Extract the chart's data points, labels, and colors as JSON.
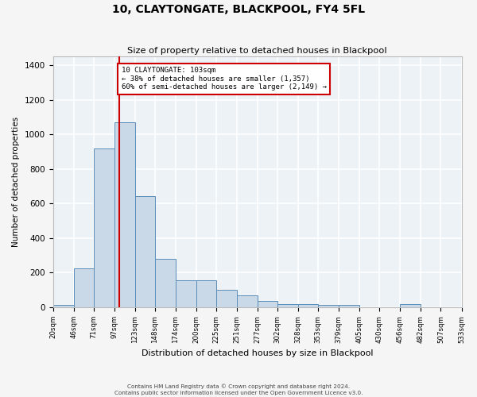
{
  "title": "10, CLAYTONGATE, BLACKPOOL, FY4 5FL",
  "subtitle": "Size of property relative to detached houses in Blackpool",
  "xlabel": "Distribution of detached houses by size in Blackpool",
  "ylabel": "Number of detached properties",
  "annotation_line1": "10 CLAYTONGATE: 103sqm",
  "annotation_line2": "← 38% of detached houses are smaller (1,357)",
  "annotation_line3": "60% of semi-detached houses are larger (2,149) →",
  "property_value": 103,
  "vertical_line_x": 103,
  "bin_edges": [
    20,
    46,
    71,
    97,
    123,
    148,
    174,
    200,
    225,
    251,
    277,
    302,
    328,
    353,
    379,
    405,
    430,
    456,
    482,
    507,
    533
  ],
  "bar_heights": [
    15,
    225,
    920,
    1070,
    645,
    280,
    158,
    158,
    103,
    67,
    35,
    20,
    20,
    15,
    13,
    0,
    0,
    20,
    0,
    0
  ],
  "bar_color": "#c9d9e8",
  "bar_edgecolor": "#5b8db8",
  "vline_color": "#cc0000",
  "background_color": "#edf2f7",
  "grid_color": "#ffffff",
  "annotation_box_color": "#ffffff",
  "annotation_box_edgecolor": "#cc0000",
  "ylim": [
    0,
    1450
  ],
  "yticks": [
    0,
    200,
    400,
    600,
    800,
    1000,
    1200,
    1400
  ],
  "tick_labels": [
    "20sqm",
    "46sqm",
    "71sqm",
    "97sqm",
    "123sqm",
    "148sqm",
    "174sqm",
    "200sqm",
    "225sqm",
    "251sqm",
    "277sqm",
    "302sqm",
    "328sqm",
    "353sqm",
    "379sqm",
    "405sqm",
    "430sqm",
    "456sqm",
    "482sqm",
    "507sqm",
    "533sqm"
  ],
  "footer_line1": "Contains HM Land Registry data © Crown copyright and database right 2024.",
  "footer_line2": "Contains public sector information licensed under the Open Government Licence v3.0."
}
